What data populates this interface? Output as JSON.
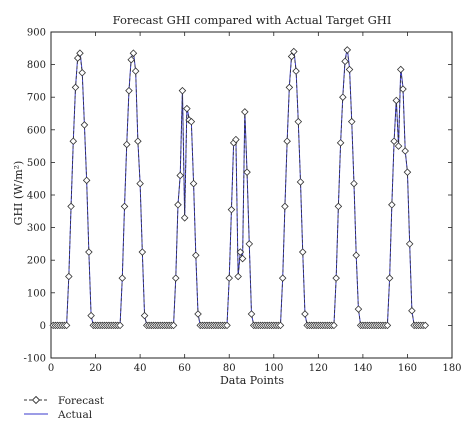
{
  "chart_data": {
    "type": "line",
    "title": "Forecast GHI compared with Actual Target GHI",
    "xlabel": "Data Points",
    "ylabel": "GHI (W/m²)",
    "xlim": [
      0,
      180
    ],
    "ylim": [
      -100,
      900
    ],
    "xticks": [
      0,
      20,
      40,
      60,
      80,
      100,
      120,
      140,
      160,
      180
    ],
    "yticks": [
      -100,
      0,
      100,
      200,
      300,
      400,
      500,
      600,
      700,
      800,
      900
    ],
    "grid": false,
    "legend_position": "bottom-left",
    "series": [
      {
        "name": "Forecast",
        "color": "#333333",
        "style": "dashed-diamond",
        "x": [
          1,
          2,
          3,
          4,
          5,
          6,
          7,
          8,
          9,
          10,
          11,
          12,
          13,
          14,
          15,
          16,
          17,
          18,
          19,
          20,
          21,
          22,
          23,
          24,
          25,
          26,
          27,
          28,
          29,
          30,
          31,
          32,
          33,
          34,
          35,
          36,
          37,
          38,
          39,
          40,
          41,
          42,
          43,
          44,
          45,
          46,
          47,
          48,
          49,
          50,
          51,
          52,
          53,
          54,
          55,
          56,
          57,
          58,
          59,
          60,
          61,
          62,
          63,
          64,
          65,
          66,
          67,
          68,
          69,
          70,
          71,
          72,
          73,
          74,
          75,
          76,
          77,
          78,
          79,
          80,
          81,
          82,
          83,
          84,
          85,
          86,
          87,
          88,
          89,
          90,
          91,
          92,
          93,
          94,
          95,
          96,
          97,
          98,
          99,
          100,
          101,
          102,
          103,
          104,
          105,
          106,
          107,
          108,
          109,
          110,
          111,
          112,
          113,
          114,
          115,
          116,
          117,
          118,
          119,
          120,
          121,
          122,
          123,
          124,
          125,
          126,
          127,
          128,
          129,
          130,
          131,
          132,
          133,
          134,
          135,
          136,
          137,
          138,
          139,
          140,
          141,
          142,
          143,
          144,
          145,
          146,
          147,
          148,
          149,
          150,
          151,
          152,
          153,
          154,
          155,
          156,
          157,
          158,
          159,
          160,
          161,
          162,
          163,
          164,
          165,
          166,
          167,
          168
        ],
        "values": [
          0,
          0,
          0,
          0,
          0,
          0,
          0,
          150,
          365,
          565,
          730,
          820,
          835,
          775,
          615,
          445,
          225,
          30,
          0,
          0,
          0,
          0,
          0,
          0,
          0,
          0,
          0,
          0,
          0,
          0,
          0,
          145,
          365,
          555,
          720,
          815,
          835,
          780,
          565,
          435,
          225,
          30,
          0,
          0,
          0,
          0,
          0,
          0,
          0,
          0,
          0,
          0,
          0,
          0,
          0,
          145,
          370,
          460,
          720,
          330,
          665,
          630,
          625,
          435,
          215,
          35,
          0,
          0,
          0,
          0,
          0,
          0,
          0,
          0,
          0,
          0,
          0,
          0,
          0,
          145,
          355,
          560,
          570,
          150,
          225,
          205,
          655,
          470,
          250,
          35,
          0,
          0,
          0,
          0,
          0,
          0,
          0,
          0,
          0,
          0,
          0,
          0,
          0,
          145,
          365,
          565,
          730,
          825,
          840,
          780,
          625,
          440,
          225,
          35,
          0,
          0,
          0,
          0,
          0,
          0,
          0,
          0,
          0,
          0,
          0,
          0,
          0,
          145,
          365,
          560,
          700,
          810,
          845,
          785,
          625,
          435,
          215,
          50,
          0,
          0,
          0,
          0,
          0,
          0,
          0,
          0,
          0,
          0,
          0,
          0,
          0,
          145,
          370,
          565,
          690,
          550,
          785,
          725,
          535,
          470,
          250,
          45,
          0,
          0,
          0,
          0,
          0,
          0
        ]
      },
      {
        "name": "Actual",
        "color": "#3a3acc",
        "style": "solid",
        "x": [
          1,
          2,
          3,
          4,
          5,
          6,
          7,
          8,
          9,
          10,
          11,
          12,
          13,
          14,
          15,
          16,
          17,
          18,
          19,
          20,
          21,
          22,
          23,
          24,
          25,
          26,
          27,
          28,
          29,
          30,
          31,
          32,
          33,
          34,
          35,
          36,
          37,
          38,
          39,
          40,
          41,
          42,
          43,
          44,
          45,
          46,
          47,
          48,
          49,
          50,
          51,
          52,
          53,
          54,
          55,
          56,
          57,
          58,
          59,
          60,
          61,
          62,
          63,
          64,
          65,
          66,
          67,
          68,
          69,
          70,
          71,
          72,
          73,
          74,
          75,
          76,
          77,
          78,
          79,
          80,
          81,
          82,
          83,
          84,
          85,
          86,
          87,
          88,
          89,
          90,
          91,
          92,
          93,
          94,
          95,
          96,
          97,
          98,
          99,
          100,
          101,
          102,
          103,
          104,
          105,
          106,
          107,
          108,
          109,
          110,
          111,
          112,
          113,
          114,
          115,
          116,
          117,
          118,
          119,
          120,
          121,
          122,
          123,
          124,
          125,
          126,
          127,
          128,
          129,
          130,
          131,
          132,
          133,
          134,
          135,
          136,
          137,
          138,
          139,
          140,
          141,
          142,
          143,
          144,
          145,
          146,
          147,
          148,
          149,
          150,
          151,
          152,
          153,
          154,
          155,
          156,
          157,
          158,
          159,
          160,
          161,
          162,
          163,
          164,
          165,
          166,
          167,
          168
        ],
        "values": [
          0,
          0,
          0,
          0,
          0,
          0,
          0,
          150,
          365,
          565,
          730,
          825,
          840,
          780,
          615,
          445,
          225,
          30,
          0,
          0,
          0,
          0,
          0,
          0,
          0,
          0,
          0,
          0,
          0,
          0,
          0,
          145,
          365,
          555,
          720,
          820,
          840,
          780,
          565,
          435,
          225,
          30,
          0,
          0,
          0,
          0,
          0,
          0,
          0,
          0,
          0,
          0,
          0,
          0,
          0,
          145,
          370,
          460,
          725,
          330,
          670,
          635,
          625,
          435,
          215,
          35,
          0,
          0,
          0,
          0,
          0,
          0,
          0,
          0,
          0,
          0,
          0,
          0,
          0,
          145,
          355,
          565,
          575,
          150,
          230,
          205,
          660,
          470,
          250,
          35,
          0,
          0,
          0,
          0,
          0,
          0,
          0,
          0,
          0,
          0,
          0,
          0,
          0,
          145,
          365,
          565,
          735,
          830,
          845,
          785,
          625,
          440,
          225,
          35,
          0,
          0,
          0,
          0,
          0,
          0,
          0,
          0,
          0,
          0,
          0,
          0,
          0,
          145,
          365,
          560,
          705,
          815,
          850,
          790,
          625,
          435,
          215,
          50,
          0,
          0,
          0,
          0,
          0,
          0,
          0,
          0,
          0,
          0,
          0,
          0,
          0,
          145,
          370,
          565,
          695,
          550,
          790,
          730,
          535,
          470,
          250,
          45,
          0,
          0,
          0,
          0,
          0,
          0
        ]
      }
    ]
  }
}
